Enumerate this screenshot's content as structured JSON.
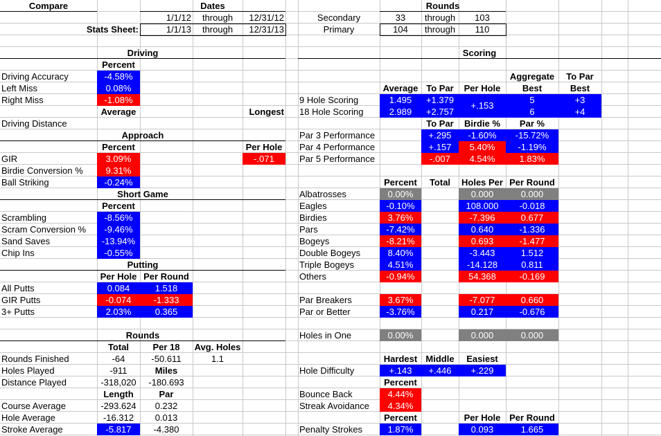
{
  "header": {
    "compare": "Compare",
    "dates": "Dates",
    "rounds": "Rounds",
    "date1_from": "1/1/12",
    "date1_through": "through",
    "date1_to": "12/31/12",
    "stats_sheet": "Stats Sheet:",
    "date2_from": "1/1/13",
    "date2_through": "through",
    "date2_to": "12/31/13",
    "secondary": "Secondary",
    "sec_from": "33",
    "sec_through": "through",
    "sec_to": "103",
    "primary": "Primary",
    "pri_from": "104",
    "pri_through": "through",
    "pri_to": "110"
  },
  "driving": {
    "title": "Driving",
    "percent": "Percent",
    "accuracy_label": "Driving Accuracy",
    "accuracy": "-4.58%",
    "left_label": "Left Miss",
    "left": "0.08%",
    "right_label": "Right Miss",
    "right": "-1.08%",
    "average": "Average",
    "longest": "Longest",
    "distance_label": "Driving Distance"
  },
  "approach": {
    "title": "Approach",
    "percent": "Percent",
    "per_hole": "Per Hole",
    "gir_label": "GIR",
    "gir": "3.09%",
    "gir_per_hole": "-.071",
    "birdie_label": "Birdie Conversion %",
    "birdie": "9.31%",
    "ball_label": "Ball Striking",
    "ball": "-0.24%"
  },
  "short_game": {
    "title": "Short Game",
    "percent": "Percent",
    "scrambling_label": "Scrambling",
    "scrambling": "-8.56%",
    "scram_conv_label": "Scram Conversion %",
    "scram_conv": "-9.46%",
    "sand_label": "Sand Saves",
    "sand": "-13.94%",
    "chip_label": "Chip Ins",
    "chip": "-0.55%"
  },
  "putting": {
    "title": "Putting",
    "per_hole": "Per Hole",
    "per_round": "Per Round",
    "all_label": "All Putts",
    "all_ph": "0.084",
    "all_pr": "1.518",
    "gir_label": "GIR Putts",
    "gir_ph": "-0.074",
    "gir_pr": "-1.333",
    "three_label": "3+ Putts",
    "three_ph": "2.03%",
    "three_pr": "0.365"
  },
  "rounds_section": {
    "title": "Rounds",
    "total": "Total",
    "per18": "Per 18",
    "avg_holes": "Avg. Holes",
    "finished_label": "Rounds Finished",
    "finished_total": "-64",
    "finished_per18": "-50.611",
    "finished_avg": "1.1",
    "holes_label": "Holes Played",
    "holes_total": "-911",
    "miles": "Miles",
    "distance_label": "Distance Played",
    "distance_total": "-318,020",
    "distance_miles": "-180.693",
    "length": "Length",
    "par": "Par",
    "course_label": "Course Average",
    "course_length": "-293.624",
    "course_par": "0.232",
    "hole_label": "Hole Average",
    "hole_length": "-16.312",
    "hole_par": "0.013",
    "stroke_label": "Stroke Average",
    "stroke_length": "-5.817",
    "stroke_par": "-4.380"
  },
  "scoring": {
    "title": "Scoring",
    "aggregate": "Aggregate",
    "to_par": "To Par",
    "average": "Average",
    "to_par2": "To Par",
    "per_hole": "Per Hole",
    "best": "Best",
    "best2": "Best",
    "nine_label": "9 Hole Scoring",
    "nine_avg": "1.495",
    "nine_topar": "+1.379",
    "nine_agg": "5",
    "nine_best": "+3",
    "eighteen_label": "18 Hole Scoring",
    "eighteen_avg": "2.989",
    "eighteen_topar": "+2.757",
    "eighteen_agg": "6",
    "eighteen_best": "+4",
    "per_hole_merged": "+.153",
    "perf_topar": "To Par",
    "perf_birdie": "Birdie %",
    "perf_par": "Par %",
    "p3_label": "Par 3 Performance",
    "p3_topar": "+.295",
    "p3_birdie": "-1.60%",
    "p3_par": "-15.72%",
    "p4_label": "Par 4 Performance",
    "p4_topar": "+.157",
    "p4_birdie": "5.40%",
    "p4_par": "-1.19%",
    "p5_label": "Par 5 Performance",
    "p5_topar": "-.007",
    "p5_birdie": "4.54%",
    "p5_par": "1.83%",
    "percent": "Percent",
    "total": "Total",
    "holes_per": "Holes Per",
    "per_round": "Per Round",
    "rows": [
      {
        "label": "Albatrosses",
        "pct": "0.00%",
        "hp": "0.000",
        "pr": "0.000"
      },
      {
        "label": "Eagles",
        "pct": "-0.10%",
        "hp": "108.000",
        "pr": "-0.018"
      },
      {
        "label": "Birdies",
        "pct": "3.76%",
        "hp": "-7.396",
        "pr": "0.677"
      },
      {
        "label": "Pars",
        "pct": "-7.42%",
        "hp": "0.640",
        "pr": "-1.336"
      },
      {
        "label": "Bogeys",
        "pct": "-8.21%",
        "hp": "0.693",
        "pr": "-1.477"
      },
      {
        "label": "Double Bogeys",
        "pct": "8.40%",
        "hp": "-3.443",
        "pr": "1.512"
      },
      {
        "label": "Triple Bogeys",
        "pct": "4.51%",
        "hp": "-14.128",
        "pr": "0.811"
      },
      {
        "label": "Others",
        "pct": "-0.94%",
        "hp": "54.368",
        "pr": "-0.169"
      }
    ],
    "breakers_label": "Par Breakers",
    "breakers_pct": "3.67%",
    "breakers_hp": "-7.077",
    "breakers_pr": "0.660",
    "better_label": "Par or Better",
    "better_pct": "-3.76%",
    "better_hp": "0.217",
    "better_pr": "-0.676",
    "hio_label": "Holes in One",
    "hio_pct": "0.00%",
    "hio_hp": "0.000",
    "hio_pr": "0.000",
    "hardest": "Hardest",
    "middle": "Middle",
    "easiest": "Easiest",
    "difficulty_label": "Hole Difficulty",
    "diff_hardest": "+.143",
    "diff_middle": "+.446",
    "diff_easiest": "+.229",
    "bounce_percent": "Percent",
    "bounce_label": "Bounce Back",
    "bounce": "4.44%",
    "streak_label": "Streak Avoidance",
    "streak": "4.34%",
    "pen_percent": "Percent",
    "pen_per_hole": "Per Hole",
    "pen_per_round": "Per Round",
    "penalty_label": "Penalty Strokes",
    "penalty_pct": "1.87%",
    "penalty_ph": "0.093",
    "penalty_pr": "1.665"
  },
  "colors": {
    "positive_good": "#0000ff",
    "negative_bad": "#ff0000",
    "neutral": "#808080"
  }
}
